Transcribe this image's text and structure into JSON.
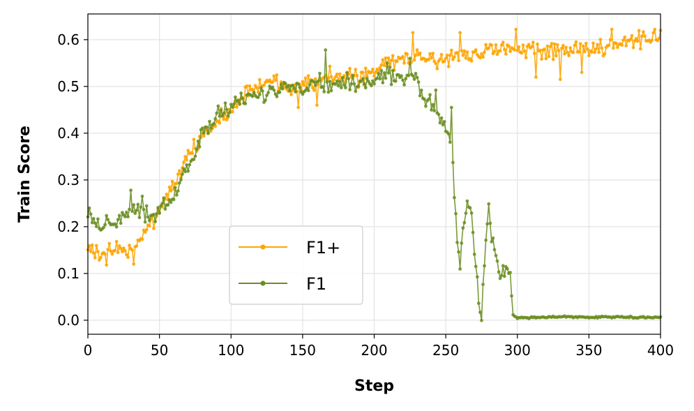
{
  "chart_data": {
    "type": "line",
    "xlabel": "Step",
    "ylabel": "Train Score",
    "xlim": [
      0,
      400
    ],
    "ylim": [
      -0.03,
      0.655
    ],
    "xticks": [
      0,
      50,
      100,
      150,
      200,
      250,
      300,
      350,
      400
    ],
    "xtick_labels": [
      "0",
      "50",
      "100",
      "150",
      "200",
      "250",
      "300",
      "350",
      "400"
    ],
    "yticks": [
      0.0,
      0.1,
      0.2,
      0.3,
      0.4,
      0.5,
      0.6
    ],
    "ytick_labels": [
      "0.0",
      "0.1",
      "0.2",
      "0.3",
      "0.4",
      "0.5",
      "0.6"
    ],
    "grid": true,
    "legend_position": "lower-center",
    "series": [
      {
        "name": "F1+",
        "color": "#FFA500",
        "marker": "circle",
        "x_start": 0,
        "x_step": 1,
        "anchors": [
          [
            0,
            0.16
          ],
          [
            5,
            0.14
          ],
          [
            10,
            0.15
          ],
          [
            20,
            0.15
          ],
          [
            30,
            0.15
          ],
          [
            35,
            0.17
          ],
          [
            40,
            0.19
          ],
          [
            45,
            0.2
          ],
          [
            50,
            0.24
          ],
          [
            55,
            0.26
          ],
          [
            60,
            0.29
          ],
          [
            65,
            0.32
          ],
          [
            70,
            0.35
          ],
          [
            75,
            0.37
          ],
          [
            80,
            0.39
          ],
          [
            85,
            0.41
          ],
          [
            90,
            0.42
          ],
          [
            95,
            0.44
          ],
          [
            100,
            0.45
          ],
          [
            105,
            0.47
          ],
          [
            110,
            0.49
          ],
          [
            120,
            0.5
          ],
          [
            130,
            0.51
          ],
          [
            140,
            0.5
          ],
          [
            150,
            0.51
          ],
          [
            160,
            0.51
          ],
          [
            170,
            0.52
          ],
          [
            180,
            0.52
          ],
          [
            190,
            0.52
          ],
          [
            200,
            0.53
          ],
          [
            210,
            0.55
          ],
          [
            220,
            0.56
          ],
          [
            230,
            0.56
          ],
          [
            240,
            0.56
          ],
          [
            250,
            0.56
          ],
          [
            260,
            0.57
          ],
          [
            270,
            0.57
          ],
          [
            280,
            0.58
          ],
          [
            290,
            0.58
          ],
          [
            300,
            0.58
          ],
          [
            310,
            0.58
          ],
          [
            320,
            0.57
          ],
          [
            330,
            0.58
          ],
          [
            340,
            0.58
          ],
          [
            350,
            0.58
          ],
          [
            360,
            0.58
          ],
          [
            370,
            0.59
          ],
          [
            380,
            0.59
          ],
          [
            390,
            0.6
          ],
          [
            400,
            0.61
          ]
        ],
        "noise": 0.018,
        "spikes": [
          [
            227,
            0.615
          ],
          [
            260,
            0.615
          ],
          [
            299,
            0.622
          ],
          [
            366,
            0.622
          ],
          [
            396,
            0.622
          ],
          [
            400,
            0.62
          ],
          [
            13,
            0.118
          ],
          [
            32,
            0.12
          ],
          [
            147,
            0.455
          ],
          [
            160,
            0.46
          ],
          [
            313,
            0.52
          ],
          [
            330,
            0.515
          ],
          [
            345,
            0.53
          ]
        ]
      },
      {
        "name": "F1",
        "color": "#6B8E23",
        "marker": "circle",
        "x_start": 0,
        "x_step": 1,
        "anchors": [
          [
            0,
            0.22
          ],
          [
            5,
            0.21
          ],
          [
            10,
            0.2
          ],
          [
            15,
            0.21
          ],
          [
            20,
            0.21
          ],
          [
            25,
            0.23
          ],
          [
            30,
            0.23
          ],
          [
            35,
            0.24
          ],
          [
            40,
            0.23
          ],
          [
            45,
            0.22
          ],
          [
            50,
            0.24
          ],
          [
            55,
            0.25
          ],
          [
            60,
            0.26
          ],
          [
            65,
            0.3
          ],
          [
            70,
            0.33
          ],
          [
            75,
            0.36
          ],
          [
            80,
            0.4
          ],
          [
            85,
            0.41
          ],
          [
            90,
            0.44
          ],
          [
            95,
            0.45
          ],
          [
            100,
            0.46
          ],
          [
            105,
            0.47
          ],
          [
            110,
            0.47
          ],
          [
            115,
            0.47
          ],
          [
            120,
            0.48
          ],
          [
            130,
            0.49
          ],
          [
            140,
            0.5
          ],
          [
            150,
            0.5
          ],
          [
            160,
            0.51
          ],
          [
            170,
            0.5
          ],
          [
            180,
            0.51
          ],
          [
            190,
            0.51
          ],
          [
            200,
            0.51
          ],
          [
            210,
            0.52
          ],
          [
            220,
            0.52
          ],
          [
            225,
            0.53
          ],
          [
            230,
            0.52
          ],
          [
            235,
            0.47
          ],
          [
            240,
            0.47
          ],
          [
            245,
            0.44
          ],
          [
            250,
            0.41
          ],
          [
            253,
            0.39
          ],
          [
            255,
            0.33
          ],
          [
            258,
            0.17
          ],
          [
            260,
            0.12
          ],
          [
            262,
            0.18
          ],
          [
            265,
            0.25
          ],
          [
            268,
            0.23
          ],
          [
            270,
            0.14
          ],
          [
            273,
            0.05
          ],
          [
            275,
            0.02
          ],
          [
            278,
            0.17
          ],
          [
            280,
            0.24
          ],
          [
            282,
            0.18
          ],
          [
            285,
            0.14
          ],
          [
            288,
            0.09
          ],
          [
            290,
            0.1
          ],
          [
            293,
            0.11
          ],
          [
            295,
            0.09
          ],
          [
            297,
            0.01
          ],
          [
            300,
            0.005
          ],
          [
            310,
            0.006
          ],
          [
            330,
            0.007
          ],
          [
            360,
            0.007
          ],
          [
            380,
            0.006
          ],
          [
            400,
            0.007
          ]
        ],
        "noise": 0.016,
        "noise_until": 296,
        "spikes": [
          [
            1,
            0.24
          ],
          [
            30,
            0.278
          ],
          [
            38,
            0.265
          ],
          [
            166,
            0.578
          ],
          [
            209,
            0.55
          ],
          [
            225,
            0.56
          ],
          [
            232,
            0.48
          ],
          [
            243,
            0.492
          ],
          [
            254,
            0.455
          ]
        ]
      }
    ]
  }
}
